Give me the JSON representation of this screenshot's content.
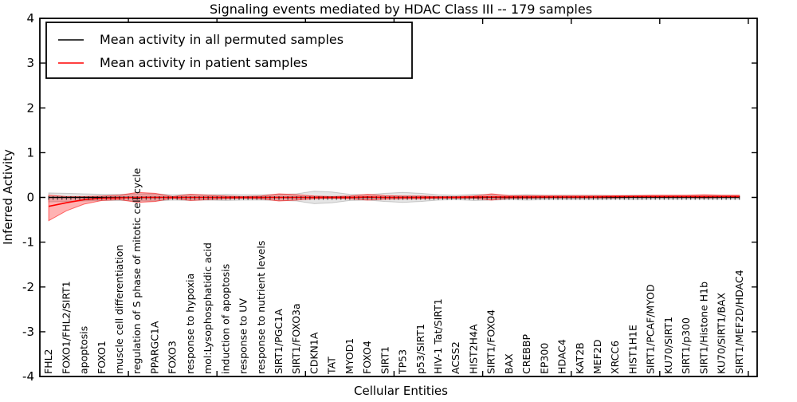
{
  "chart_data": {
    "type": "line",
    "title": "Signaling events mediated by HDAC Class III -- 179 samples",
    "xlabel": "Cellular Entities",
    "ylabel": "Inferred Activity",
    "ylim": [
      -4,
      4
    ],
    "xlim": [
      0,
      40.5
    ],
    "yticks": [
      4,
      3,
      2,
      1,
      0,
      -1,
      -2,
      -3,
      -4
    ],
    "xticks_major": [
      5,
      10,
      15,
      20,
      25,
      30,
      35,
      40
    ],
    "grid": false,
    "legend_position": "upper left",
    "legend": [
      {
        "label": "Mean activity in all permuted samples",
        "color": "#000000"
      },
      {
        "label": "Mean activity in patient samples",
        "color": "#ff0000"
      }
    ],
    "categories": [
      "FHL2",
      "FOXO1/FHL2/SIRT1",
      "apoptosis",
      "FOXO1",
      "muscle cell differentiation",
      "regulation of S phase of mitotic cell cycle",
      "PPARGC1A",
      "FOXO3",
      "response to hypoxia",
      "mol:Lysophosphatidic acid",
      "induction of apoptosis",
      "response to UV",
      "response to nutrient levels",
      "SIRT1/PGC1A",
      "SIRT1/FOXO3a",
      "CDKN1A",
      "TAT",
      "MYOD1",
      "FOXO4",
      "SIRT1",
      "TP53",
      "p53/SIRT1",
      "HIV-1 Tat/SIRT1",
      "ACSS2",
      "HIST2H4A",
      "SIRT1/FOXO4",
      "BAX",
      "CREBBP",
      "EP300",
      "HDAC4",
      "KAT2B",
      "MEF2D",
      "XRCC6",
      "HIST1H1E",
      "SIRT1/PCAF/MYOD",
      "KU70/SIRT1",
      "SIRT1/p300",
      "SIRT1/Histone H1b",
      "KU70/SIRT1/BAX",
      "SIRT1/MEF2D/HDAC4"
    ],
    "series": [
      {
        "name": "Mean activity in all permuted samples",
        "color": "#000000",
        "values": [
          0,
          0,
          0,
          0,
          0,
          0,
          0,
          0,
          0,
          0,
          0,
          0,
          0,
          0,
          0,
          0,
          0,
          0,
          0,
          0,
          0,
          0,
          0,
          0,
          0,
          0,
          0,
          0,
          0,
          0,
          0,
          0,
          0,
          0,
          0,
          0,
          0,
          0,
          0,
          0
        ]
      },
      {
        "name": "Mean activity in patient samples",
        "color": "#ff0000",
        "values": [
          -0.2,
          -0.12,
          -0.05,
          -0.02,
          -0.01,
          0,
          0,
          0,
          0,
          0,
          0,
          0,
          0,
          0,
          0,
          0,
          0,
          0,
          0.01,
          0,
          0,
          0,
          0,
          0,
          0.01,
          0.01,
          0.01,
          0.01,
          0.01,
          0.01,
          0.01,
          0.01,
          0.02,
          0.02,
          0.02,
          0.02,
          0.02,
          0.02,
          0.02,
          0.02
        ]
      }
    ],
    "bands": [
      {
        "name": "permuted-range",
        "fill": "rgba(0,0,0,0.10)",
        "edge": "rgba(0,0,0,0.18)",
        "upper": [
          0.1,
          0.09,
          0.08,
          0.07,
          0.07,
          0.08,
          0.08,
          0.06,
          0.07,
          0.06,
          0.07,
          0.06,
          0.06,
          0.07,
          0.08,
          0.14,
          0.12,
          0.07,
          0.06,
          0.09,
          0.11,
          0.09,
          0.06,
          0.05,
          0.07,
          0.06,
          0.05,
          0.06,
          0.05,
          0.05,
          0.05,
          0.05,
          0.04,
          0.05,
          0.04,
          0.04,
          0.04,
          0.04,
          0.04,
          0.04
        ],
        "lower": [
          -0.1,
          -0.09,
          -0.08,
          -0.07,
          -0.07,
          -0.08,
          -0.08,
          -0.06,
          -0.07,
          -0.06,
          -0.07,
          -0.06,
          -0.06,
          -0.07,
          -0.08,
          -0.14,
          -0.12,
          -0.07,
          -0.06,
          -0.09,
          -0.11,
          -0.09,
          -0.06,
          -0.05,
          -0.07,
          -0.06,
          -0.05,
          -0.06,
          -0.05,
          -0.05,
          -0.05,
          -0.05,
          -0.04,
          -0.05,
          -0.04,
          -0.04,
          -0.04,
          -0.04,
          -0.04,
          -0.04
        ]
      },
      {
        "name": "patient-range",
        "fill": "rgba(255,0,0,0.30)",
        "edge": "rgba(255,0,0,0.55)",
        "upper": [
          0.05,
          0.02,
          0.02,
          0.03,
          0.05,
          0.11,
          0.09,
          0.02,
          0.07,
          0.05,
          0.03,
          0.02,
          0.03,
          0.08,
          0.06,
          0.03,
          0.02,
          0.03,
          0.07,
          0.04,
          0.03,
          0.03,
          0.02,
          0.02,
          0.03,
          0.08,
          0.04,
          0.04,
          0.04,
          0.04,
          0.04,
          0.04,
          0.04,
          0.04,
          0.05,
          0.05,
          0.05,
          0.06,
          0.05,
          0.05
        ],
        "lower": [
          -0.52,
          -0.3,
          -0.15,
          -0.07,
          -0.05,
          -0.11,
          -0.09,
          -0.02,
          -0.07,
          -0.05,
          -0.03,
          -0.02,
          -0.03,
          -0.08,
          -0.06,
          -0.03,
          -0.02,
          -0.03,
          -0.06,
          -0.04,
          -0.03,
          -0.03,
          -0.02,
          -0.02,
          -0.02,
          -0.06,
          -0.02,
          -0.02,
          -0.01,
          -0.01,
          -0.01,
          -0.01,
          -0.01,
          0.0,
          0.0,
          0.0,
          0.0,
          -0.01,
          0.0,
          0.0
        ]
      }
    ]
  }
}
